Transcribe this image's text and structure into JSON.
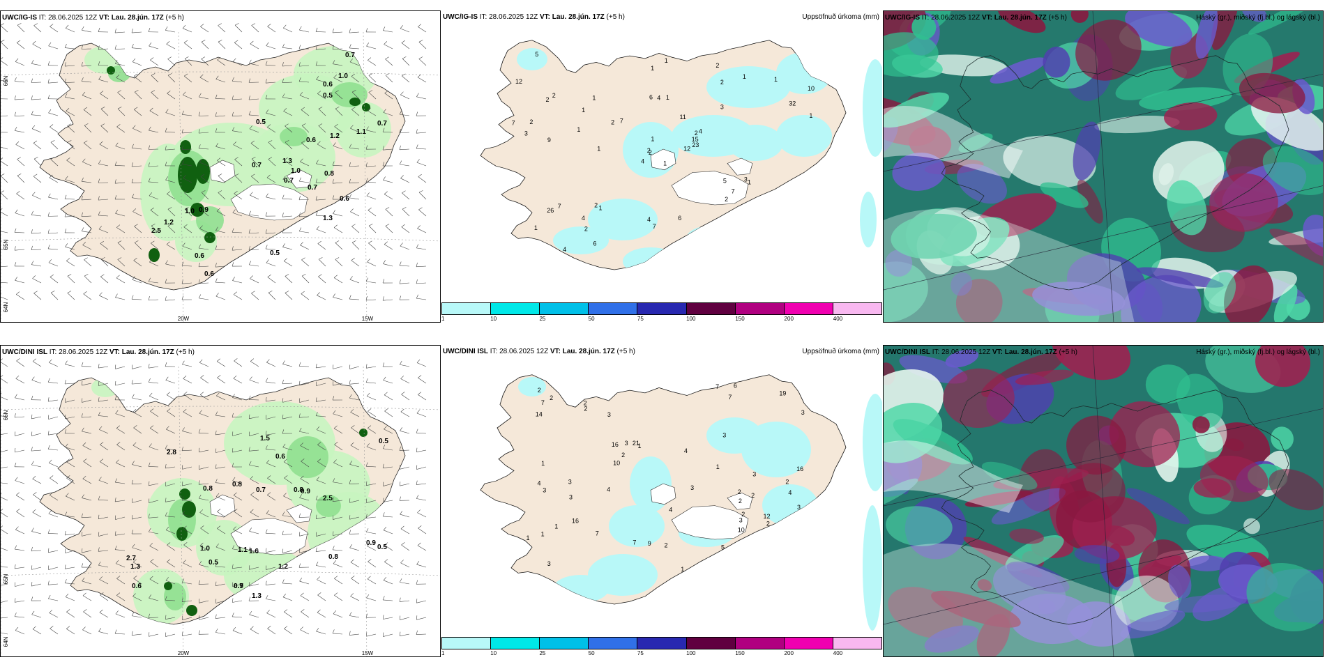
{
  "rows": [
    {
      "model": "UWC/IG-IS",
      "wind_panel": {
        "header_rest": " IT: 28.06.2025 12Z ",
        "vt_label": "VT:",
        "vt_value": "Lau. 28.jún. 17Z",
        "offset": " (+5 h)",
        "lat_labels": [
          "66N",
          "65N",
          "64N"
        ],
        "lon_labels": [
          "20W",
          "15W"
        ],
        "values": [
          "0.7",
          "0.5",
          "0.7",
          "1.0",
          "0.6",
          "0.5",
          "0.7",
          "0.6",
          "1.2",
          "1.1",
          "0.7",
          "1.3",
          "1.0",
          "0.8",
          "0.7",
          "0.6",
          "1.3",
          "0.9",
          "1.0",
          "0.6",
          "0.5",
          "0.6",
          "1.2",
          "2.5"
        ]
      },
      "precip_panel": {
        "header_rest": " IT: 28.06.2025 12Z ",
        "vt_label": "VT:",
        "vt_value": "Lau. 28.jún. 17Z",
        "offset": " (+5 h)",
        "title_right": "Uppsöfnuð úrkoma (mm)",
        "values": [
          "1",
          "2",
          "2",
          "1",
          "2",
          "1",
          "2",
          "1",
          "2",
          "12",
          "9",
          "10",
          "4",
          "3",
          "4",
          "6",
          "11",
          "7",
          "7",
          "2",
          "4",
          "4",
          "1",
          "2",
          "1",
          "3",
          "5",
          "1",
          "2",
          "4",
          "1",
          "1",
          "1",
          "2",
          "3",
          "2",
          "1",
          "2",
          "6",
          "7",
          "15",
          "7",
          "23",
          "26",
          "32",
          "12",
          "7",
          "4",
          "5",
          "6",
          "1",
          "1",
          "1",
          "2",
          "1"
        ]
      },
      "cloud_panel": {
        "header_rest": " IT: 28.06.2025 12Z ",
        "vt_label": "VT:",
        "vt_value": "Lau. 28.jún. 17Z",
        "offset": " (+5 h)",
        "title_right": "Háský (gr.), miðský (fj.bl.) og lágský (bl.)"
      }
    },
    {
      "model": "UWC/DINI ISL",
      "wind_panel": {
        "header_rest": " IT: 28.06.2025 12Z ",
        "vt_label": "VT:",
        "vt_value": "Lau. 28.jún. 17Z",
        "offset": " (+5 h)",
        "header_wrap": "h)",
        "lat_labels": [
          "66N",
          "65N",
          "64N"
        ],
        "lon_labels": [
          "20W",
          "15W"
        ],
        "values": [
          "2.8",
          "0.8",
          "0.8",
          "1.5",
          "0.7",
          "0.6",
          "0.8",
          "0.5",
          "0.9",
          "2.5",
          "1.0",
          "1.1",
          "0.5",
          "0.7",
          "1.3",
          "0.9",
          "2.7",
          "1.3",
          "0.6",
          "0.8",
          "0.5",
          "0.9",
          "1.6",
          "1.2"
        ]
      },
      "precip_panel": {
        "header_rest": " IT: 28.06.2025 12Z ",
        "vt_label": "VT:",
        "vt_value": "Lau. 28.jún. 17Z",
        "offset": " (+5 h)",
        "title_right": "Uppsöfnuð úrkoma (mm)",
        "values": [
          "2",
          "4",
          "3",
          "1",
          "1",
          "7",
          "16",
          "14",
          "4",
          "7",
          "7",
          "16",
          "4",
          "3",
          "21",
          "16",
          "19",
          "10",
          "3",
          "7",
          "2",
          "2",
          "3",
          "2",
          "3",
          "1",
          "5",
          "2",
          "4",
          "2",
          "2",
          "3",
          "3",
          "2",
          "1",
          "3",
          "6",
          "9",
          "12",
          "7",
          "1",
          "2",
          "1",
          "1",
          "3",
          "2",
          "10",
          "3",
          "2",
          "3",
          "2",
          "3",
          "4"
        ]
      },
      "cloud_panel": {
        "header_rest": " IT: 28.06.2025 12Z ",
        "vt_label": "VT:",
        "vt_value": "Lau. 28.jún. 17Z",
        "offset": " (+5 h)",
        "title_right": "Háský (gr.), miðský (fj.bl.) og lágský (bl.)"
      }
    }
  ],
  "colorbar": {
    "colors": [
      "#b8f8f8",
      "#00e8e8",
      "#00c0e8",
      "#3070e8",
      "#2828b0",
      "#600040",
      "#b00080",
      "#f000b0",
      "#f8b8f0"
    ],
    "ticks": [
      "1",
      "10",
      "25",
      "50",
      "75",
      "100",
      "150",
      "200",
      "400"
    ]
  },
  "palette": {
    "land": "#f5e8d9",
    "sea": "#ffffff",
    "light_green": "#c8f5c0",
    "green": "#90e090",
    "dark_green": "#106010",
    "cyan_light": "#b8f8f8",
    "cloud_teal": "#1e6e6a",
    "cloud_green": "#30c090",
    "cloud_purple": "#6a5acd",
    "cloud_red": "#8a1840",
    "cloud_pale": "#e8f8f0"
  }
}
